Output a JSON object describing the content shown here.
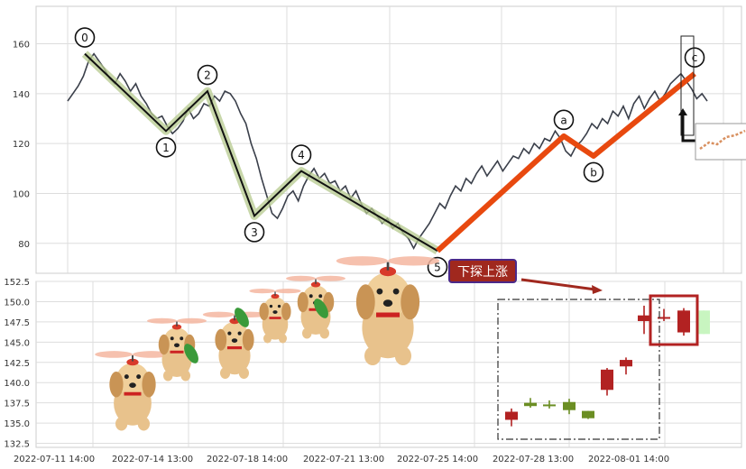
{
  "chart_data": [
    {
      "type": "line",
      "title": "",
      "xlabel": "",
      "ylabel": "",
      "ylim": [
        68,
        175
      ],
      "yticks": [
        80,
        100,
        120,
        140,
        160
      ],
      "grid": true,
      "series": [
        {
          "values": [
            137,
            140,
            143,
            147,
            153,
            156,
            153,
            150,
            146,
            144,
            148,
            145,
            141,
            144,
            139,
            136,
            132,
            130,
            131,
            127,
            124,
            126,
            129,
            134,
            130,
            132,
            136,
            135,
            139,
            137,
            141,
            140,
            137,
            132,
            128,
            120,
            114,
            106,
            99,
            92,
            90,
            94,
            99,
            101,
            97,
            103,
            107,
            110,
            106,
            108,
            104,
            105,
            101,
            103,
            98,
            101,
            96,
            92,
            94,
            91,
            88,
            90,
            86,
            88,
            84,
            82,
            78,
            82,
            85,
            88,
            92,
            96,
            94,
            99,
            103,
            101,
            106,
            104,
            108,
            111,
            107,
            110,
            113,
            109,
            112,
            115,
            114,
            118,
            116,
            120,
            118,
            122,
            121,
            125,
            122,
            117,
            115,
            119,
            121,
            124,
            128,
            126,
            130,
            128,
            133,
            131,
            135,
            130,
            136,
            139,
            134,
            138,
            141,
            137,
            140,
            144,
            146,
            148,
            145,
            142,
            138,
            140,
            137
          ]
        }
      ],
      "waves": [
        {
          "label": "0",
          "value": 156
        },
        {
          "label": "1",
          "value": 125
        },
        {
          "label": "2",
          "value": 141
        },
        {
          "label": "3",
          "value": 91
        },
        {
          "label": "4",
          "value": 109
        },
        {
          "label": "5",
          "value": 77
        },
        {
          "label": "a",
          "value": 123
        },
        {
          "label": "b",
          "value": 115
        },
        {
          "label": "c",
          "value": 148
        }
      ],
      "wave_colors": {
        "impulse": "#111111",
        "impulse_halo": "#b5c98e",
        "correction": "#e8490f"
      }
    },
    {
      "type": "candlestick",
      "title": "",
      "ylim": [
        132,
        152.5
      ],
      "yticks": [
        "132.5",
        "135.0",
        "137.5",
        "140.0",
        "142.5",
        "145.0",
        "147.5",
        "150.0",
        "152.5"
      ],
      "categories": [
        "2022-07-11 14:00",
        "2022-07-14 13:00",
        "2022-07-18 14:00",
        "2022-07-21 13:00",
        "2022-07-25 14:00",
        "2022-07-28 13:00",
        "2022-08-01 14:00"
      ],
      "candles": [
        {
          "open": 136.4,
          "high": 136.8,
          "low": 134.6,
          "close": 135.4,
          "dir": "down"
        },
        {
          "open": 137.1,
          "high": 138.1,
          "low": 136.9,
          "close": 137.5,
          "dir": "up"
        },
        {
          "open": 137.3,
          "high": 137.8,
          "low": 136.8,
          "close": 137.3,
          "dir": "up"
        },
        {
          "open": 136.6,
          "high": 138.0,
          "low": 136.1,
          "close": 137.6,
          "dir": "up"
        },
        {
          "open": 135.6,
          "high": 136.5,
          "low": 135.5,
          "close": 136.5,
          "dir": "up"
        },
        {
          "open": 141.6,
          "high": 141.8,
          "low": 138.4,
          "close": 139.1,
          "dir": "down"
        },
        {
          "open": 142.8,
          "high": 143.1,
          "low": 141.0,
          "close": 142.0,
          "dir": "down"
        },
        {
          "open": 148.3,
          "high": 149.5,
          "low": 146.0,
          "close": 147.6,
          "dir": "down"
        },
        {
          "open": 148.1,
          "high": 149.1,
          "low": 147.6,
          "close": 148.0,
          "dir": "down"
        },
        {
          "open": 148.9,
          "high": 149.2,
          "low": 145.8,
          "close": 146.2,
          "dir": "down"
        },
        {
          "open": 146.0,
          "high": 148.9,
          "low": 146.0,
          "close": 148.9,
          "dir": "ghost"
        }
      ],
      "colors": {
        "up": "#6b8e23",
        "down": "#b22222",
        "ghost": "#c8f5c0"
      },
      "annotation": "下探上涨"
    }
  ]
}
